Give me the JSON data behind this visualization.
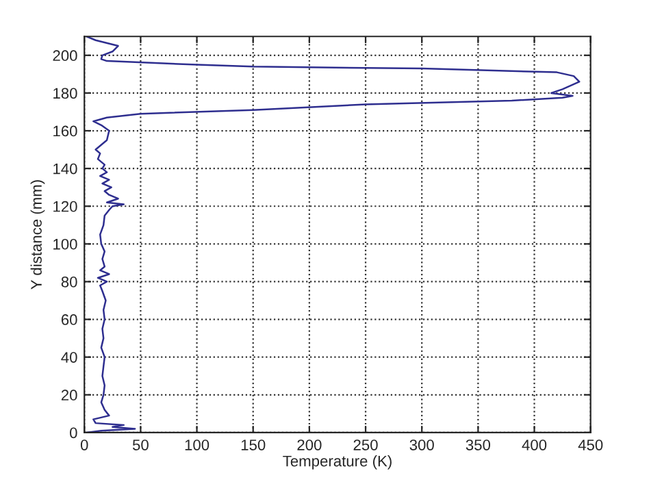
{
  "chart_data": {
    "type": "line",
    "xlabel": "Temperature (K)",
    "ylabel": "Y distance (mm)",
    "xlim": [
      0,
      450
    ],
    "xticks": [
      0,
      50,
      100,
      150,
      200,
      250,
      300,
      350,
      400,
      450
    ],
    "ylim": [
      0,
      210
    ],
    "yticks": [
      0,
      20,
      40,
      60,
      80,
      100,
      120,
      140,
      160,
      180,
      200
    ],
    "grid": true,
    "marker": "none",
    "line_style": "solid",
    "series": [
      {
        "color": "#2e2e8f",
        "x": [
          2,
          15,
          45,
          25,
          35,
          10,
          8,
          22,
          18,
          15,
          17,
          18,
          16,
          17,
          18,
          15,
          17,
          16,
          18,
          17,
          19,
          16,
          14,
          20,
          12,
          22,
          14,
          18,
          16,
          18,
          15,
          14,
          17,
          18,
          22,
          25,
          35,
          20,
          30,
          22,
          18,
          24,
          16,
          22,
          14,
          20,
          16,
          18,
          12,
          14,
          10,
          20,
          22,
          15,
          8,
          20,
          50,
          150,
          250,
          380,
          425,
          434,
          415,
          425,
          440,
          435,
          420,
          300,
          150,
          100,
          20,
          15,
          16,
          25,
          30,
          10,
          2
        ],
        "values": [
          0,
          1,
          2,
          3,
          4,
          5,
          7,
          9,
          12,
          16,
          20,
          25,
          30,
          35,
          40,
          45,
          50,
          55,
          60,
          65,
          70,
          75,
          78,
          80,
          82,
          84,
          86,
          88,
          92,
          96,
          100,
          105,
          110,
          115,
          118,
          120,
          121,
          122,
          124,
          126,
          128,
          130,
          132,
          134,
          136,
          138,
          140,
          142,
          145,
          148,
          150,
          155,
          160,
          163,
          165,
          167,
          169,
          171,
          174,
          176,
          177.5,
          178.5,
          180,
          182,
          186,
          189,
          191,
          193,
          194,
          195,
          197,
          198,
          200,
          202,
          205,
          208,
          210
        ]
      }
    ]
  }
}
